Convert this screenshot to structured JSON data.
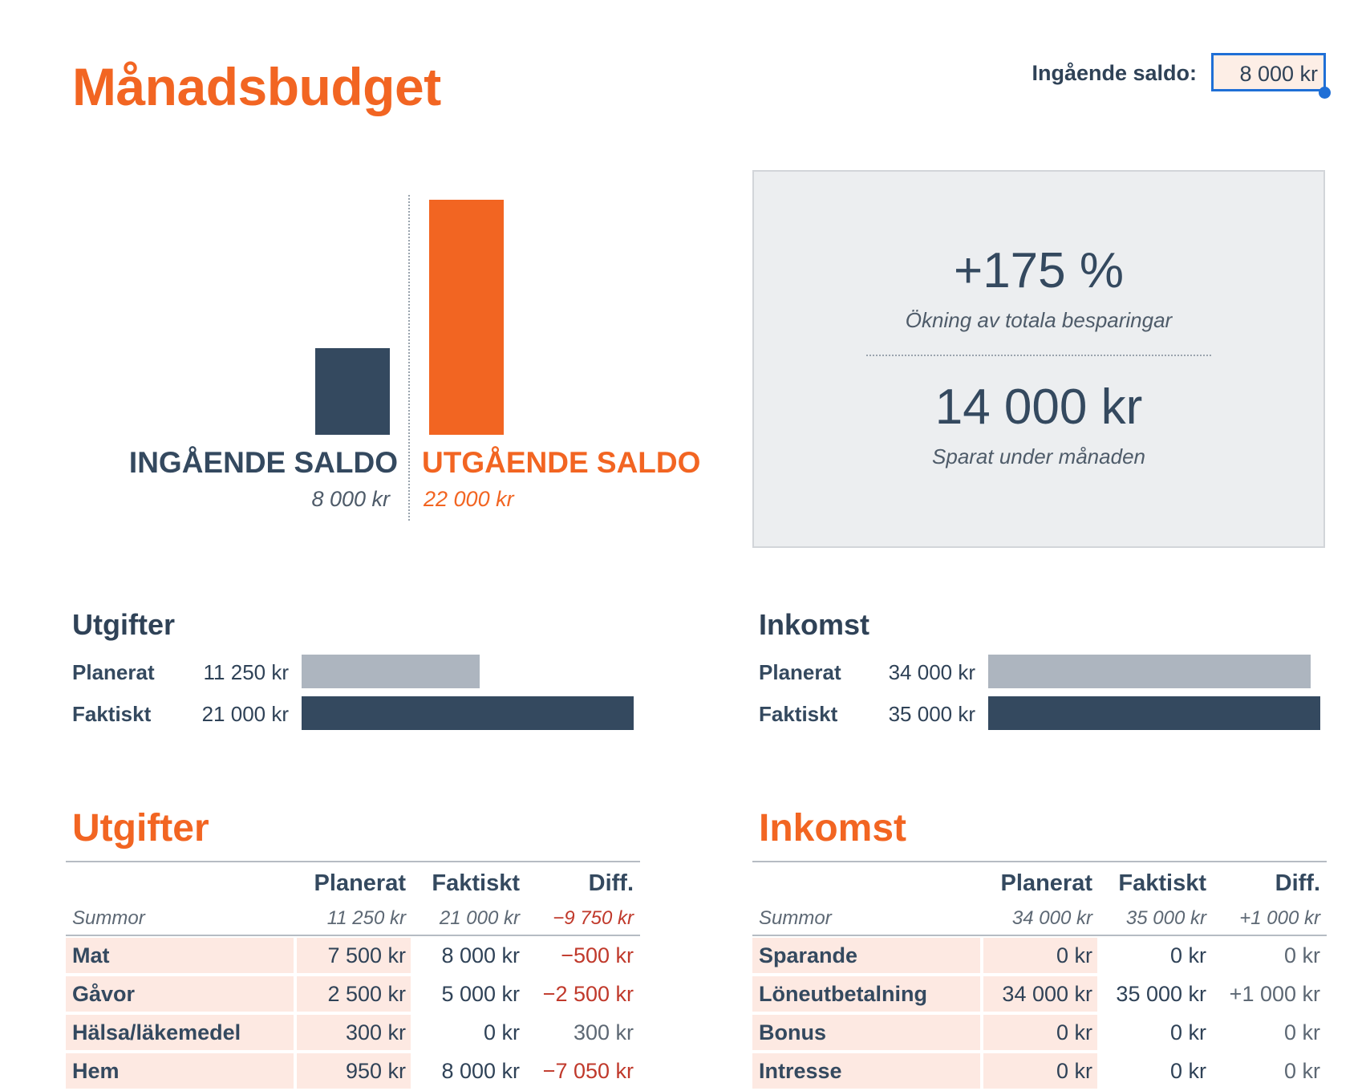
{
  "title": "Månadsbudget",
  "opening_balance": {
    "label": "Ingående saldo:",
    "value": "8 000 kr"
  },
  "balance_chart": {
    "chart_data": {
      "type": "bar",
      "categories": [
        "INGÅENDE SALDO",
        "UTGÅENDE SALDO"
      ],
      "values": [
        8000,
        22000
      ],
      "value_labels": [
        "8 000 kr",
        "22 000 kr"
      ],
      "colors": [
        "#34495f",
        "#f26522"
      ]
    }
  },
  "summary": {
    "percent": "+175 %",
    "percent_label": "Ökning av totala besparingar",
    "saved": "14 000 kr",
    "saved_label": "Sparat under månaden"
  },
  "mini_expenses": {
    "title": "Utgifter",
    "rows": [
      {
        "label": "Planerat",
        "value": "11 250 kr",
        "amount": 11250
      },
      {
        "label": "Faktiskt",
        "value": "21 000 kr",
        "amount": 21000
      }
    ]
  },
  "mini_income": {
    "title": "Inkomst",
    "rows": [
      {
        "label": "Planerat",
        "value": "34 000 kr",
        "amount": 34000
      },
      {
        "label": "Faktiskt",
        "value": "35 000 kr",
        "amount": 35000
      }
    ]
  },
  "expenses_table": {
    "title": "Utgifter",
    "headers": [
      "Planerat",
      "Faktiskt",
      "Diff."
    ],
    "sum_label": "Summor",
    "sums": [
      "11 250 kr",
      "21 000 kr",
      "−9 750 kr"
    ],
    "rows": [
      {
        "name": "Mat",
        "planned": "7 500 kr",
        "actual": "8 000 kr",
        "diff": "−500 kr"
      },
      {
        "name": "Gåvor",
        "planned": "2 500 kr",
        "actual": "5 000 kr",
        "diff": "−2 500 kr"
      },
      {
        "name": "Hälsa/läkemedel",
        "planned": "300 kr",
        "actual": "0 kr",
        "diff": "300 kr"
      },
      {
        "name": "Hem",
        "planned": "950 kr",
        "actual": "8 000 kr",
        "diff": "−7 050 kr"
      }
    ]
  },
  "income_table": {
    "title": "Inkomst",
    "headers": [
      "Planerat",
      "Faktiskt",
      "Diff."
    ],
    "sum_label": "Summor",
    "sums": [
      "34 000 kr",
      "35 000 kr",
      "+1 000 kr"
    ],
    "rows": [
      {
        "name": "Sparande",
        "planned": "0 kr",
        "actual": "0 kr",
        "diff": "0 kr"
      },
      {
        "name": "Löneutbetalning",
        "planned": "34 000 kr",
        "actual": "35 000 kr",
        "diff": "+1 000 kr"
      },
      {
        "name": "Bonus",
        "planned": "0 kr",
        "actual": "0 kr",
        "diff": "0 kr"
      },
      {
        "name": "Intresse",
        "planned": "0 kr",
        "actual": "0 kr",
        "diff": "0 kr"
      }
    ]
  }
}
